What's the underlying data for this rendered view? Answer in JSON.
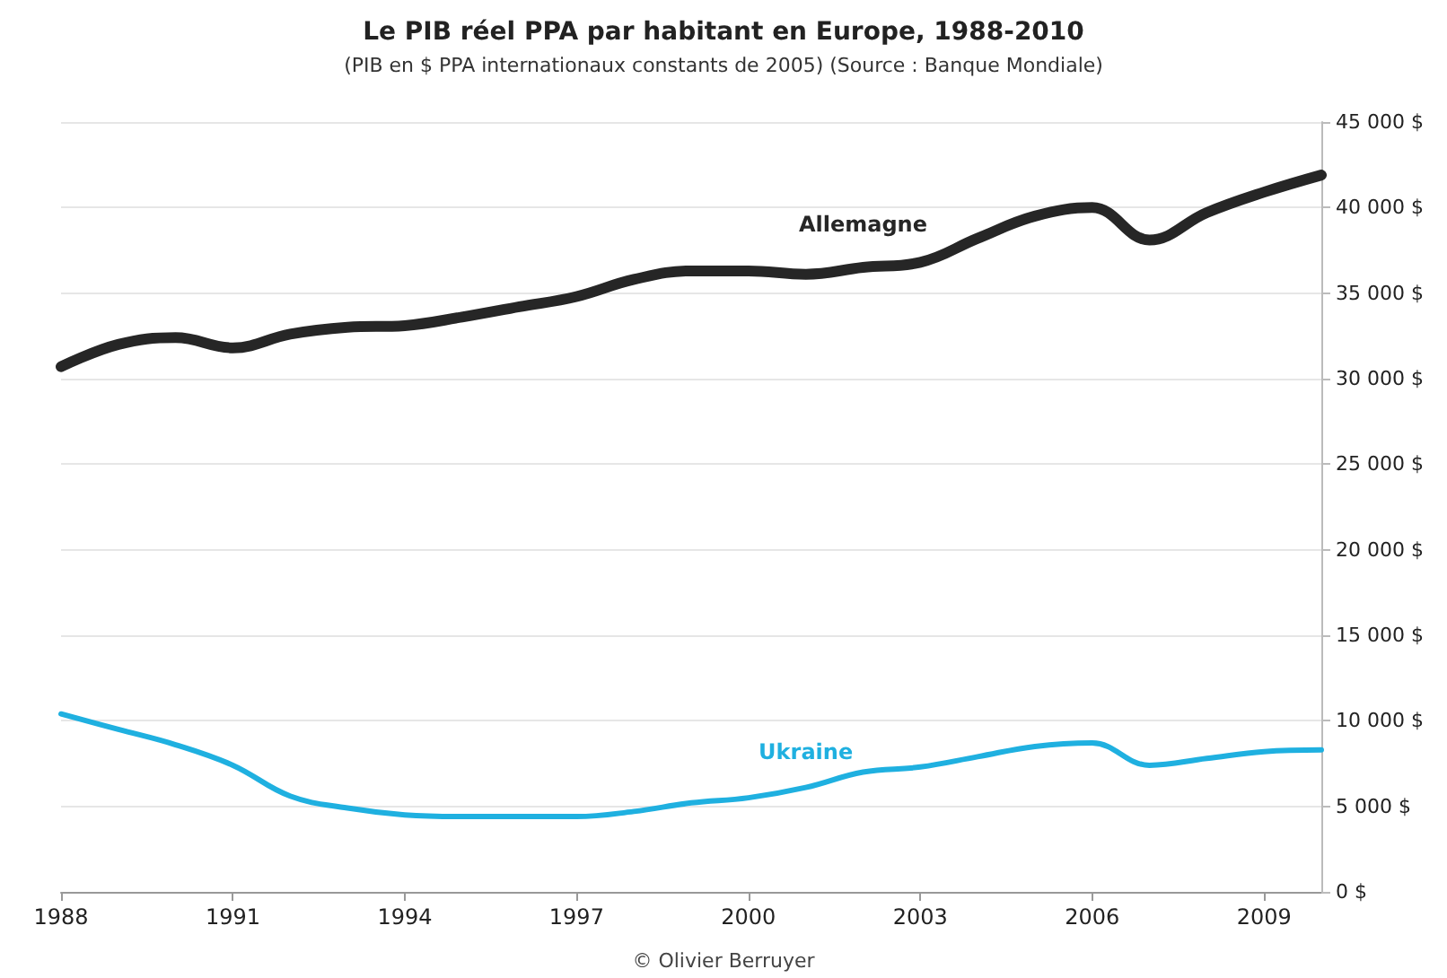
{
  "chart_data": {
    "type": "line",
    "title": "Le PIB réel PPA par habitant en Europe, 1988-2010",
    "subtitle": "(PIB en $ PPA internationaux constants de 2005) (Source : Banque Mondiale)",
    "annotations": [
      "© Olivier Berruyer"
    ],
    "x": [
      1988,
      1989,
      1990,
      1991,
      1992,
      1993,
      1994,
      1995,
      1996,
      1997,
      1998,
      1999,
      2000,
      2001,
      2002,
      2003,
      2004,
      2005,
      2006,
      2007,
      2008,
      2009,
      2010
    ],
    "series": [
      {
        "name": "Allemagne",
        "color": "#262626",
        "values": [
          30700,
          32000,
          32400,
          31800,
          32600,
          33000,
          33100,
          33600,
          34200,
          34800,
          35800,
          36300,
          36300,
          36100,
          36500,
          36800,
          38200,
          39500,
          40000,
          38100,
          39700,
          40900,
          41900
        ]
      },
      {
        "name": "Ukraine",
        "color": "#1fb0e0",
        "values": [
          10400,
          9500,
          8600,
          7400,
          5600,
          4900,
          4500,
          4400,
          4400,
          4400,
          4700,
          5200,
          5500,
          6100,
          7000,
          7300,
          7900,
          8500,
          8700,
          7400,
          7800,
          8200,
          8300
        ]
      }
    ],
    "xlim": [
      1988,
      2010
    ],
    "xticks": [
      1988,
      1991,
      1994,
      1997,
      2000,
      2003,
      2006,
      2009
    ],
    "ylim": [
      0,
      45000
    ],
    "yticks": [
      {
        "value": 0,
        "label": "0 $"
      },
      {
        "value": 5000,
        "label": "5 000 $"
      },
      {
        "value": 10000,
        "label": "10 000 $"
      },
      {
        "value": 15000,
        "label": "15 000 $"
      },
      {
        "value": 20000,
        "label": "20 000 $"
      },
      {
        "value": 25000,
        "label": "25 000 $"
      },
      {
        "value": 30000,
        "label": "30 000 $"
      },
      {
        "value": 35000,
        "label": "35 000 $"
      },
      {
        "value": 40000,
        "label": "40 000 $"
      },
      {
        "value": 45000,
        "label": "45 000 $"
      }
    ],
    "grid": "y",
    "marker": "none",
    "line_style": "solid"
  }
}
